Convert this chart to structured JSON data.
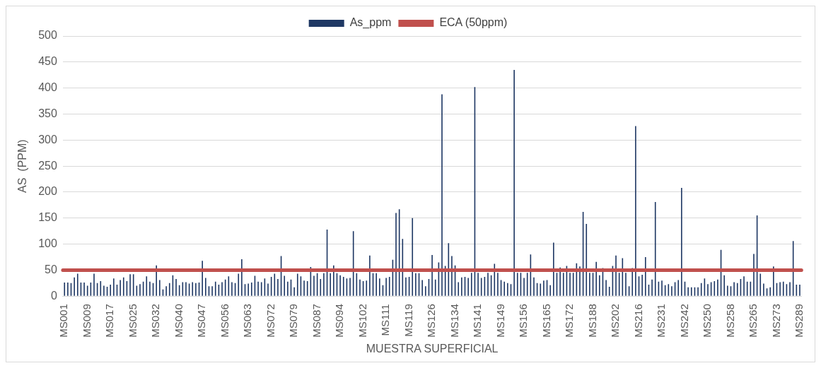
{
  "chart_data": {
    "type": "bar",
    "xlabel": "MUESTRA SUPERFICIAL",
    "ylabel": "AS  (PPM)",
    "categories": [
      "MS001",
      null,
      null,
      null,
      null,
      null,
      null,
      "MS009",
      null,
      null,
      null,
      null,
      null,
      null,
      "MS017",
      null,
      null,
      null,
      null,
      null,
      null,
      "MS025",
      null,
      null,
      null,
      null,
      null,
      null,
      "MS032",
      null,
      null,
      null,
      null,
      null,
      null,
      "MS040",
      null,
      null,
      null,
      null,
      null,
      null,
      "MS047",
      null,
      null,
      null,
      null,
      null,
      null,
      "MS056",
      null,
      null,
      null,
      null,
      null,
      null,
      "MS063",
      null,
      null,
      null,
      null,
      null,
      null,
      "MS072",
      null,
      null,
      null,
      null,
      null,
      null,
      "MS079",
      null,
      null,
      null,
      null,
      null,
      null,
      "MS087",
      null,
      null,
      null,
      null,
      null,
      null,
      "MS094",
      null,
      null,
      null,
      null,
      null,
      null,
      "MS102",
      null,
      null,
      null,
      null,
      null,
      null,
      "MS111",
      null,
      null,
      null,
      null,
      null,
      null,
      "MS119",
      null,
      null,
      null,
      null,
      null,
      null,
      "MS126",
      null,
      null,
      null,
      null,
      null,
      null,
      "MS134",
      null,
      null,
      null,
      null,
      null,
      null,
      "MS141",
      null,
      null,
      null,
      null,
      null,
      null,
      "MS149",
      null,
      null,
      null,
      null,
      null,
      null,
      "MS156",
      null,
      null,
      null,
      null,
      null,
      null,
      "MS165",
      null,
      null,
      null,
      null,
      null,
      null,
      "MS172",
      null,
      null,
      null,
      null,
      null,
      null,
      "MS188",
      null,
      null,
      null,
      null,
      null,
      null,
      "MS202",
      null,
      null,
      null,
      null,
      null,
      null,
      "MS216",
      null,
      null,
      null,
      null,
      null,
      null,
      "MS231",
      null,
      null,
      null,
      null,
      null,
      null,
      "MS242",
      null,
      null,
      null,
      null,
      null,
      null,
      "MS250",
      null,
      null,
      null,
      null,
      null,
      null,
      "MS258",
      null,
      null,
      null,
      null,
      null,
      null,
      "MS265",
      null,
      null,
      null,
      null,
      null,
      null,
      "MS273",
      null,
      null,
      null,
      null,
      null,
      null,
      "MS289"
    ],
    "series": [
      {
        "name": "As_ppm",
        "color": "#1f3864",
        "values": [
          26,
          26,
          25,
          36,
          43,
          26,
          26,
          20,
          26,
          43,
          25,
          29,
          20,
          18,
          22,
          34,
          22,
          31,
          36,
          29,
          42,
          42,
          20,
          23,
          28,
          38,
          28,
          25,
          59,
          31,
          13,
          19,
          25,
          40,
          33,
          21,
          27,
          27,
          24,
          27,
          25,
          26,
          68,
          35,
          19,
          19,
          28,
          22,
          27,
          32,
          38,
          27,
          25,
          43,
          71,
          23,
          24,
          26,
          39,
          28,
          27,
          34,
          24,
          37,
          43,
          33,
          77,
          39,
          28,
          32,
          17,
          43,
          38,
          30,
          29,
          56,
          39,
          44,
          33,
          44,
          128,
          44,
          59,
          44,
          40,
          37,
          34,
          35,
          125,
          44,
          32,
          29,
          30,
          78,
          44,
          44,
          34,
          21,
          35,
          37,
          70,
          160,
          167,
          110,
          36,
          37,
          150,
          44,
          44,
          31,
          19,
          33,
          79,
          32,
          65,
          388,
          58,
          102,
          77,
          59,
          27,
          36,
          37,
          35,
          45,
          402,
          45,
          35,
          37,
          45,
          40,
          62,
          45,
          31,
          28,
          25,
          23,
          435,
          45,
          45,
          35,
          45,
          80,
          36,
          25,
          24,
          30,
          31,
          21,
          103,
          45,
          55,
          45,
          58,
          45,
          45,
          63,
          57,
          162,
          139,
          45,
          45,
          66,
          40,
          54,
          31,
          18,
          58,
          78,
          45,
          73,
          45,
          19,
          54,
          327,
          38,
          41,
          75,
          22,
          32,
          181,
          28,
          30,
          21,
          23,
          19,
          27,
          31,
          208,
          28,
          17,
          17,
          17,
          17,
          25,
          34,
          23,
          27,
          29,
          32,
          89,
          40,
          20,
          19,
          27,
          25,
          33,
          38,
          28,
          28,
          81,
          155,
          43,
          24,
          15,
          17,
          57,
          25,
          27,
          28,
          23,
          27,
          106,
          22,
          22
        ]
      }
    ],
    "ref_lines": [
      {
        "axis": "y",
        "value": 50,
        "label": "ECA (50ppm)",
        "color": "#c0504d"
      }
    ],
    "ylim": [
      0,
      500
    ],
    "yticks": [
      0,
      50,
      100,
      150,
      200,
      250,
      300,
      350,
      400,
      450,
      500
    ],
    "grid": "y",
    "legend": "top"
  }
}
